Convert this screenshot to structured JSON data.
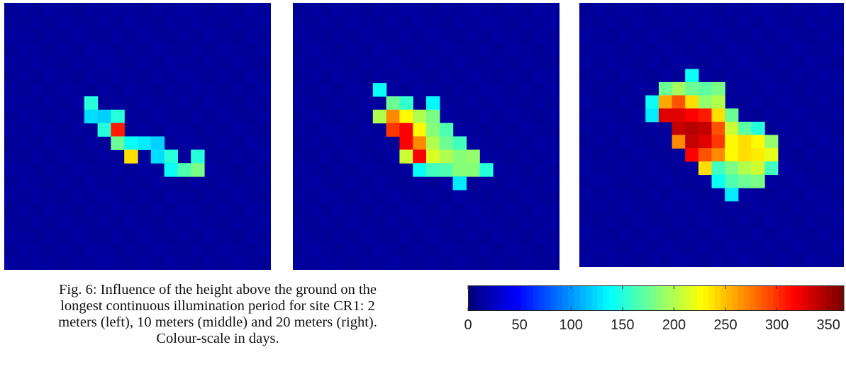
{
  "caption": {
    "lines": [
      "Fig. 6: Influence of the height above the ground on the",
      "longest continuous illumination period for site CR1: 2",
      "meters (left), 10 meters (middle) and 20 meters (right).",
      "Colour-scale in days."
    ]
  },
  "colorbar": {
    "min": 0,
    "max": 365,
    "ticks": [
      "0",
      "50",
      "100",
      "150",
      "200",
      "250",
      "300",
      "350"
    ],
    "tick_values": [
      0,
      50,
      100,
      150,
      200,
      250,
      300,
      350
    ],
    "colormap": "jet"
  },
  "chart_data": [
    {
      "type": "heatmap",
      "panel": "left",
      "grid_size": 20,
      "background_value": 10,
      "cells": [
        [
          6,
          7,
          150
        ],
        [
          6,
          8,
          125
        ],
        [
          7,
          8,
          120
        ],
        [
          8,
          8,
          150
        ],
        [
          7,
          9,
          150
        ],
        [
          8,
          9,
          310
        ],
        [
          8,
          10,
          175
        ],
        [
          9,
          10,
          140
        ],
        [
          10,
          10,
          130
        ],
        [
          11,
          10,
          120
        ],
        [
          9,
          11,
          240
        ],
        [
          11,
          11,
          125
        ],
        [
          12,
          11,
          150
        ],
        [
          14,
          11,
          150
        ],
        [
          12,
          12,
          140
        ],
        [
          13,
          12,
          165
        ],
        [
          14,
          12,
          180
        ]
      ]
    },
    {
      "type": "heatmap",
      "panel": "middle",
      "grid_size": 20,
      "background_value": 10,
      "cells": [
        [
          6,
          6,
          140
        ],
        [
          7,
          7,
          175
        ],
        [
          8,
          7,
          155
        ],
        [
          10,
          7,
          135
        ],
        [
          6,
          8,
          200
        ],
        [
          7,
          8,
          270
        ],
        [
          8,
          8,
          230
        ],
        [
          9,
          8,
          200
        ],
        [
          10,
          8,
          180
        ],
        [
          7,
          9,
          300
        ],
        [
          8,
          9,
          320
        ],
        [
          9,
          9,
          230
        ],
        [
          10,
          9,
          185
        ],
        [
          11,
          9,
          165
        ],
        [
          8,
          10,
          320
        ],
        [
          9,
          10,
          270
        ],
        [
          10,
          10,
          200
        ],
        [
          11,
          10,
          175
        ],
        [
          12,
          10,
          160
        ],
        [
          8,
          11,
          210
        ],
        [
          9,
          11,
          320
        ],
        [
          10,
          11,
          215
        ],
        [
          11,
          11,
          200
        ],
        [
          12,
          11,
          185
        ],
        [
          13,
          11,
          190
        ],
        [
          9,
          12,
          140
        ],
        [
          10,
          12,
          160
        ],
        [
          11,
          12,
          165
        ],
        [
          12,
          12,
          185
        ],
        [
          13,
          12,
          185
        ],
        [
          14,
          12,
          150
        ],
        [
          12,
          13,
          130
        ]
      ]
    },
    {
      "type": "heatmap",
      "panel": "right",
      "grid_size": 20,
      "background_value": 10,
      "cells": [
        [
          8,
          5,
          140
        ],
        [
          6,
          6,
          175
        ],
        [
          7,
          6,
          195
        ],
        [
          8,
          6,
          175
        ],
        [
          9,
          6,
          170
        ],
        [
          10,
          6,
          180
        ],
        [
          5,
          7,
          140
        ],
        [
          6,
          7,
          260
        ],
        [
          7,
          7,
          290
        ],
        [
          8,
          7,
          240
        ],
        [
          9,
          7,
          190
        ],
        [
          10,
          7,
          200
        ],
        [
          5,
          8,
          130
        ],
        [
          6,
          8,
          330
        ],
        [
          7,
          8,
          330
        ],
        [
          8,
          8,
          320
        ],
        [
          9,
          8,
          310
        ],
        [
          10,
          8,
          240
        ],
        [
          11,
          8,
          175
        ],
        [
          7,
          9,
          340
        ],
        [
          8,
          9,
          345
        ],
        [
          9,
          9,
          340
        ],
        [
          10,
          9,
          290
        ],
        [
          11,
          9,
          210
        ],
        [
          12,
          9,
          170
        ],
        [
          13,
          9,
          150
        ],
        [
          7,
          10,
          270
        ],
        [
          8,
          10,
          340
        ],
        [
          9,
          10,
          330
        ],
        [
          10,
          10,
          300
        ],
        [
          11,
          10,
          230
        ],
        [
          12,
          10,
          240
        ],
        [
          13,
          10,
          230
        ],
        [
          14,
          10,
          190
        ],
        [
          8,
          11,
          320
        ],
        [
          9,
          11,
          290
        ],
        [
          10,
          11,
          270
        ],
        [
          11,
          11,
          230
        ],
        [
          12,
          11,
          240
        ],
        [
          13,
          11,
          235
        ],
        [
          14,
          11,
          220
        ],
        [
          9,
          12,
          240
        ],
        [
          10,
          12,
          160
        ],
        [
          11,
          12,
          180
        ],
        [
          12,
          12,
          200
        ],
        [
          13,
          12,
          210
        ],
        [
          14,
          12,
          160
        ],
        [
          10,
          13,
          140
        ],
        [
          11,
          13,
          165
        ],
        [
          12,
          13,
          175
        ],
        [
          13,
          13,
          180
        ],
        [
          11,
          14,
          130
        ]
      ]
    }
  ]
}
